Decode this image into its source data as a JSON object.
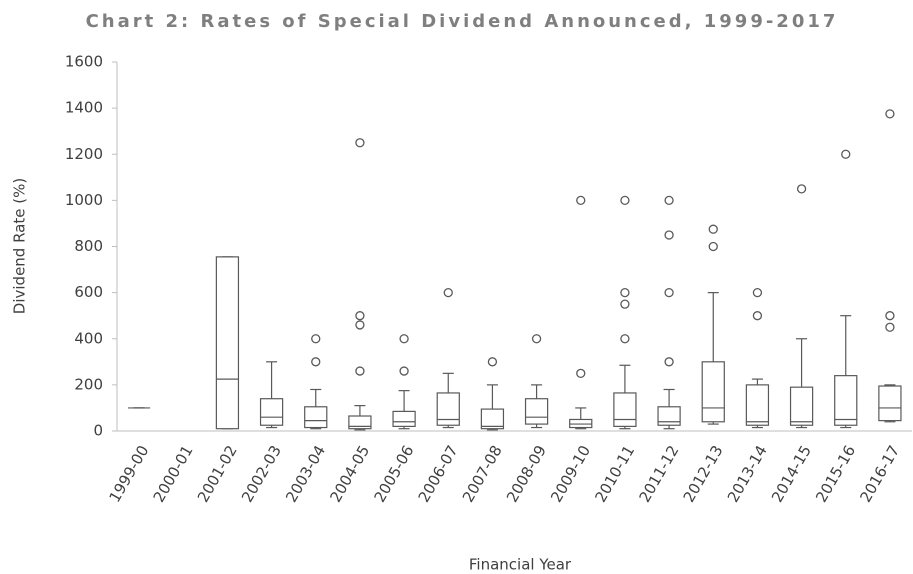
{
  "chart_data": {
    "type": "box",
    "title": "Chart 2: Rates of Special Dividend Announced, 1999-2017",
    "x_label": "Financial Year",
    "y_label": "Dividend Rate (%)",
    "categories": [
      "1999-00",
      "2000-01",
      "2001-02",
      "2002-03",
      "2003-04",
      "2004-05",
      "2005-06",
      "2006-07",
      "2007-08",
      "2008-09",
      "2009-10",
      "2010-11",
      "2011-12",
      "2012-13",
      "2013-14",
      "2014-15",
      "2015-16",
      "2016-17"
    ],
    "min": [
      100,
      null,
      10,
      15,
      10,
      5,
      10,
      15,
      5,
      15,
      10,
      10,
      10,
      30,
      15,
      15,
      15,
      40
    ],
    "q1": [
      100,
      null,
      10,
      25,
      15,
      10,
      20,
      25,
      10,
      30,
      15,
      20,
      25,
      40,
      25,
      25,
      25,
      45
    ],
    "median": [
      100,
      null,
      225,
      60,
      45,
      20,
      40,
      50,
      20,
      60,
      30,
      50,
      40,
      100,
      40,
      40,
      50,
      100
    ],
    "q3": [
      100,
      null,
      755,
      140,
      105,
      65,
      85,
      165,
      95,
      140,
      50,
      165,
      105,
      300,
      200,
      190,
      240,
      195
    ],
    "max": [
      100,
      null,
      755,
      300,
      180,
      110,
      175,
      250,
      200,
      200,
      100,
      285,
      180,
      600,
      225,
      400,
      500,
      200
    ],
    "outliers": [
      [],
      [],
      [],
      [],
      [
        300,
        400
      ],
      [
        260,
        460,
        500,
        1250
      ],
      [
        260,
        400
      ],
      [
        600
      ],
      [
        300
      ],
      [
        400
      ],
      [
        250,
        1000
      ],
      [
        400,
        550,
        600,
        1000
      ],
      [
        300,
        600,
        850,
        1000
      ],
      [
        800,
        875
      ],
      [
        500,
        600
      ],
      [
        1050
      ],
      [
        1200
      ],
      [
        450,
        500,
        1375
      ]
    ],
    "color": "#595959",
    "ylim": [
      0,
      1600
    ],
    "yticks": [
      0,
      200,
      400,
      600,
      800,
      1000,
      1200,
      1400,
      1600
    ],
    "grid": false
  }
}
